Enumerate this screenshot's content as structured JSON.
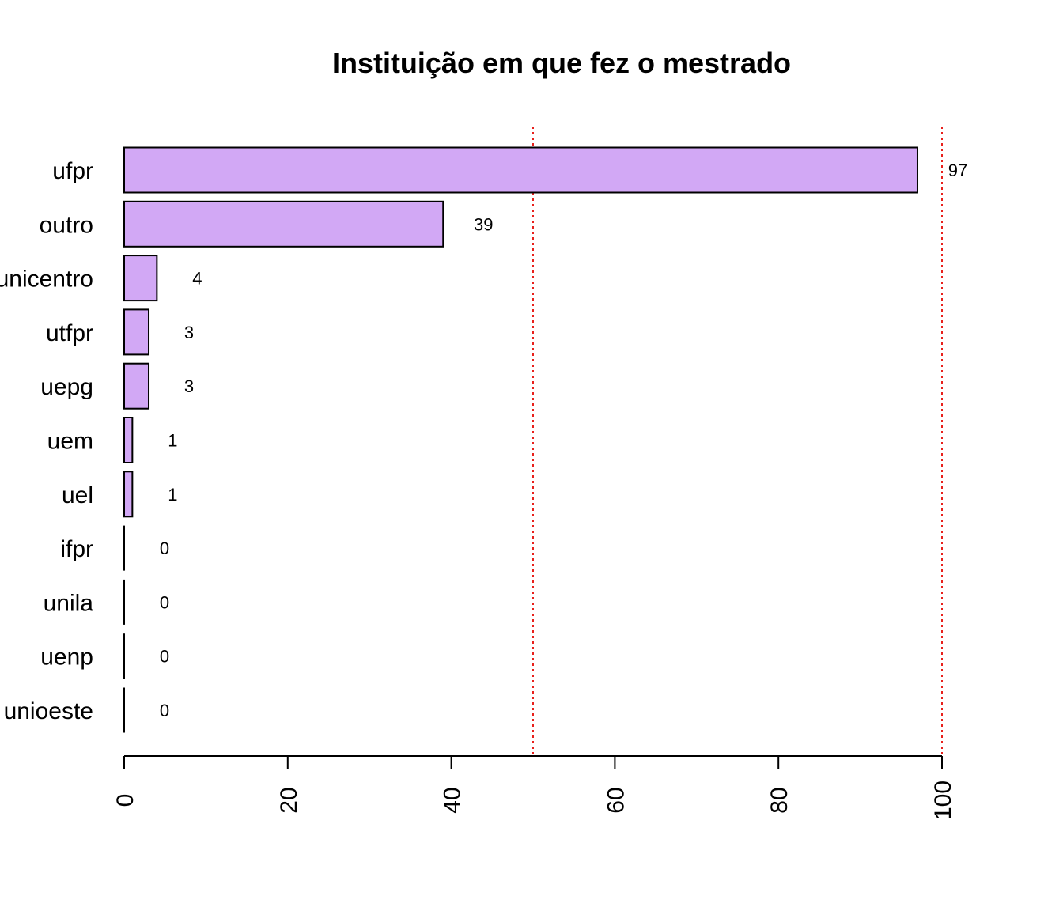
{
  "chart_data": {
    "type": "bar",
    "orientation": "horizontal",
    "title": "Instituição em que fez o mestrado",
    "xlabel": "",
    "ylabel": "",
    "categories": [
      "ufpr",
      "outro",
      "unicentro",
      "utfpr",
      "uepg",
      "uem",
      "uel",
      "ifpr",
      "unila",
      "uenp",
      "unioeste"
    ],
    "values": [
      97,
      39,
      4,
      3,
      3,
      1,
      1,
      0,
      0,
      0,
      0
    ],
    "value_labels": [
      "97",
      "39",
      "4",
      "3",
      "3",
      "1",
      "1",
      "0",
      "0",
      "0",
      "0"
    ],
    "xlim": [
      0,
      100
    ],
    "x_ticks": [
      0,
      20,
      40,
      60,
      80,
      100
    ],
    "x_tick_labels": [
      "0",
      "20",
      "40",
      "60",
      "80",
      "100"
    ],
    "reference_lines": [
      50,
      100
    ],
    "grid": false,
    "legend": "none",
    "colors": {
      "bar_fill": "#d2a8f5",
      "bar_stroke": "#000000",
      "reference_line": "#e8201c"
    }
  }
}
